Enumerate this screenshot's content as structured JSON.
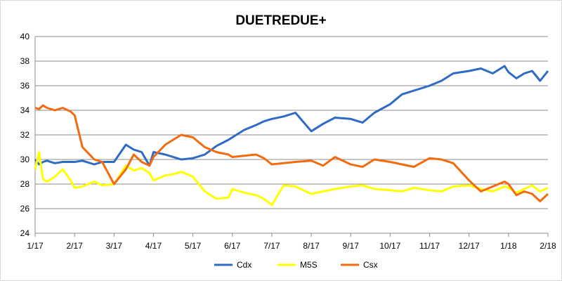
{
  "chart_data": {
    "type": "line",
    "title": "DUETREDUE+",
    "xlabel": "",
    "ylabel": "",
    "x_ticks": [
      "1/17",
      "2/17",
      "3/17",
      "4/17",
      "5/17",
      "6/17",
      "7/17",
      "8/17",
      "9/17",
      "10/17",
      "11/17",
      "12/17",
      "1/18",
      "2/18"
    ],
    "ylim": [
      24,
      40
    ],
    "y_ticks": [
      24,
      26,
      28,
      30,
      32,
      34,
      36,
      38,
      40
    ],
    "grid": "horizontal",
    "legend_position": "bottom",
    "x": [
      0.0,
      0.1,
      0.2,
      0.3,
      0.5,
      0.7,
      0.9,
      1.0,
      1.2,
      1.5,
      1.7,
      2.0,
      2.3,
      2.5,
      2.7,
      2.9,
      3.0,
      3.3,
      3.5,
      3.7,
      4.0,
      4.3,
      4.6,
      4.9,
      5.0,
      5.3,
      5.6,
      5.8,
      6.0,
      6.3,
      6.6,
      7.0,
      7.3,
      7.6,
      8.0,
      8.3,
      8.6,
      9.0,
      9.3,
      9.6,
      10.0,
      10.3,
      10.6,
      11.0,
      11.3,
      11.6,
      11.9,
      12.0,
      12.2,
      12.4,
      12.6,
      12.8,
      13.0
    ],
    "series": [
      {
        "name": "Cdx",
        "color": "#2e6bc4",
        "values": [
          30.0,
          29.6,
          29.8,
          29.9,
          29.7,
          29.8,
          29.8,
          29.8,
          29.9,
          29.6,
          29.8,
          29.8,
          31.2,
          30.8,
          30.6,
          29.5,
          30.6,
          30.4,
          30.2,
          30.0,
          30.1,
          30.4,
          31.1,
          31.6,
          31.8,
          32.4,
          32.8,
          33.1,
          33.3,
          33.5,
          33.8,
          32.3,
          32.9,
          33.4,
          33.3,
          33.0,
          33.8,
          34.5,
          35.3,
          35.6,
          36.0,
          36.4,
          37.0,
          37.2,
          37.4,
          37.0,
          37.6,
          37.1,
          36.6,
          37.0,
          37.2,
          36.4,
          37.2
        ]
      },
      {
        "name": "M5S",
        "color": "#ffff00",
        "values": [
          29.2,
          30.6,
          28.4,
          28.2,
          28.6,
          29.2,
          28.3,
          27.7,
          27.8,
          28.2,
          27.9,
          28.0,
          29.5,
          29.1,
          29.3,
          28.9,
          28.3,
          28.7,
          28.8,
          29.0,
          28.6,
          27.4,
          26.8,
          26.9,
          27.6,
          27.3,
          27.1,
          26.8,
          26.3,
          27.9,
          27.8,
          27.2,
          27.4,
          27.6,
          27.8,
          27.9,
          27.6,
          27.5,
          27.4,
          27.7,
          27.5,
          27.4,
          27.8,
          27.9,
          27.6,
          27.4,
          27.8,
          27.7,
          27.3,
          27.6,
          27.9,
          27.4,
          27.7
        ]
      },
      {
        "name": "Csx",
        "color": "#f26b0f",
        "values": [
          34.2,
          34.1,
          34.4,
          34.2,
          34.0,
          34.2,
          33.9,
          33.6,
          31.0,
          30.0,
          29.8,
          28.0,
          29.2,
          30.4,
          29.8,
          29.5,
          30.2,
          31.2,
          31.6,
          32.0,
          31.8,
          31.0,
          30.6,
          30.4,
          30.2,
          30.3,
          30.4,
          30.1,
          29.6,
          29.7,
          29.8,
          29.9,
          29.5,
          30.2,
          29.6,
          29.4,
          30.0,
          29.8,
          29.6,
          29.4,
          30.1,
          30.0,
          29.7,
          28.3,
          27.4,
          27.8,
          28.2,
          28.0,
          27.1,
          27.4,
          27.2,
          26.6,
          27.2
        ]
      }
    ]
  }
}
